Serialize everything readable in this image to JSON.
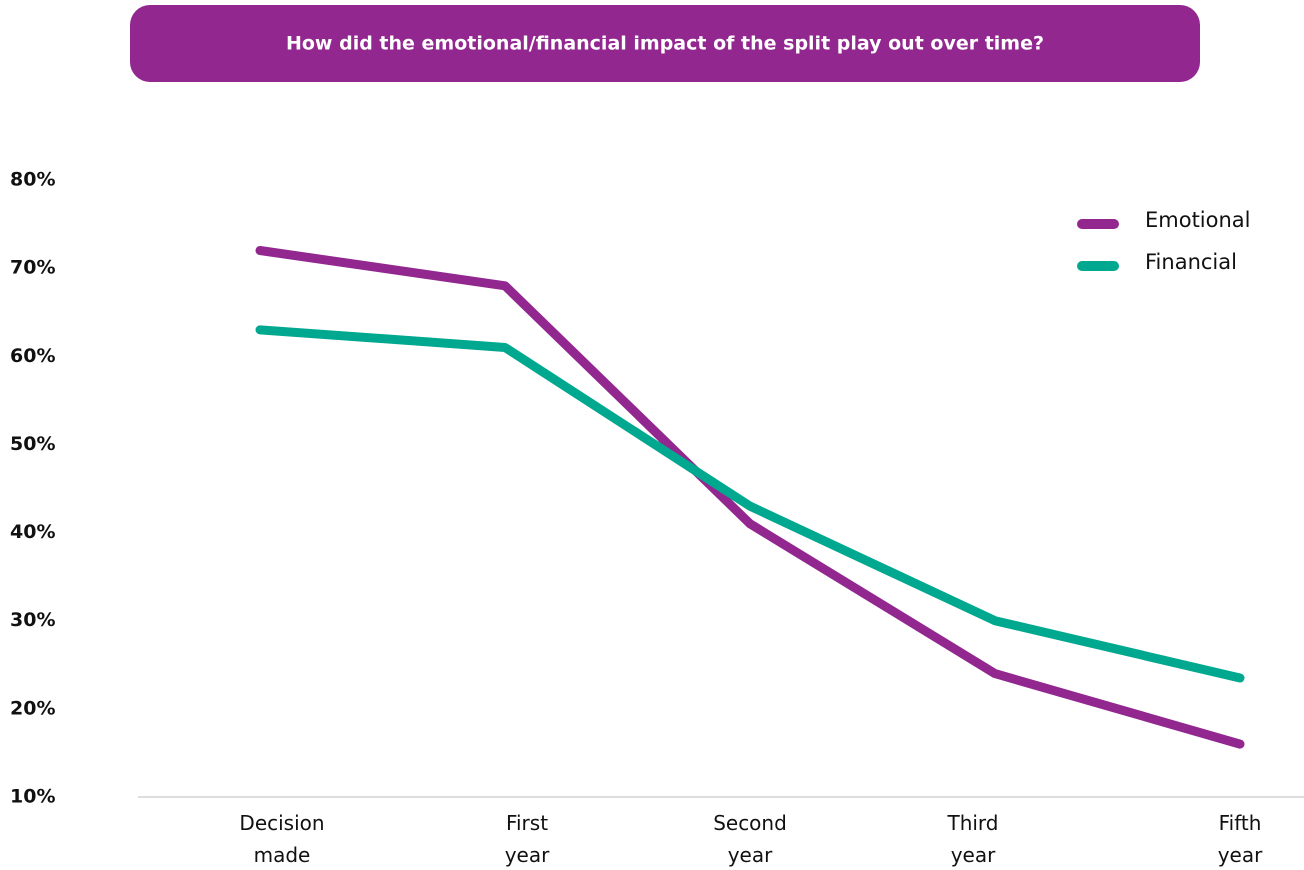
{
  "chart_data": {
    "type": "line",
    "title": "How did the emotional/financial impact of the split play out over time?",
    "categories": [
      "Decision made",
      "First year",
      "Second year",
      "Third year",
      "Fifth year"
    ],
    "series": [
      {
        "name": "Emotional",
        "color": "#92278f",
        "values": [
          72,
          68,
          41,
          24,
          16
        ]
      },
      {
        "name": "Financial",
        "color": "#00a88f",
        "values": [
          63,
          61,
          43,
          30,
          23.5
        ]
      }
    ],
    "ylim": [
      10,
      80
    ],
    "yticks": [
      {
        "value": 10,
        "label": "10%"
      },
      {
        "value": 20,
        "label": "20%"
      },
      {
        "value": 30,
        "label": "30%"
      },
      {
        "value": 40,
        "label": "40%"
      },
      {
        "value": 50,
        "label": "50%"
      },
      {
        "value": 60,
        "label": "60%"
      },
      {
        "value": 70,
        "label": "70%"
      },
      {
        "value": 80,
        "label": "80%"
      }
    ],
    "grid": false,
    "legend": "top-right"
  }
}
